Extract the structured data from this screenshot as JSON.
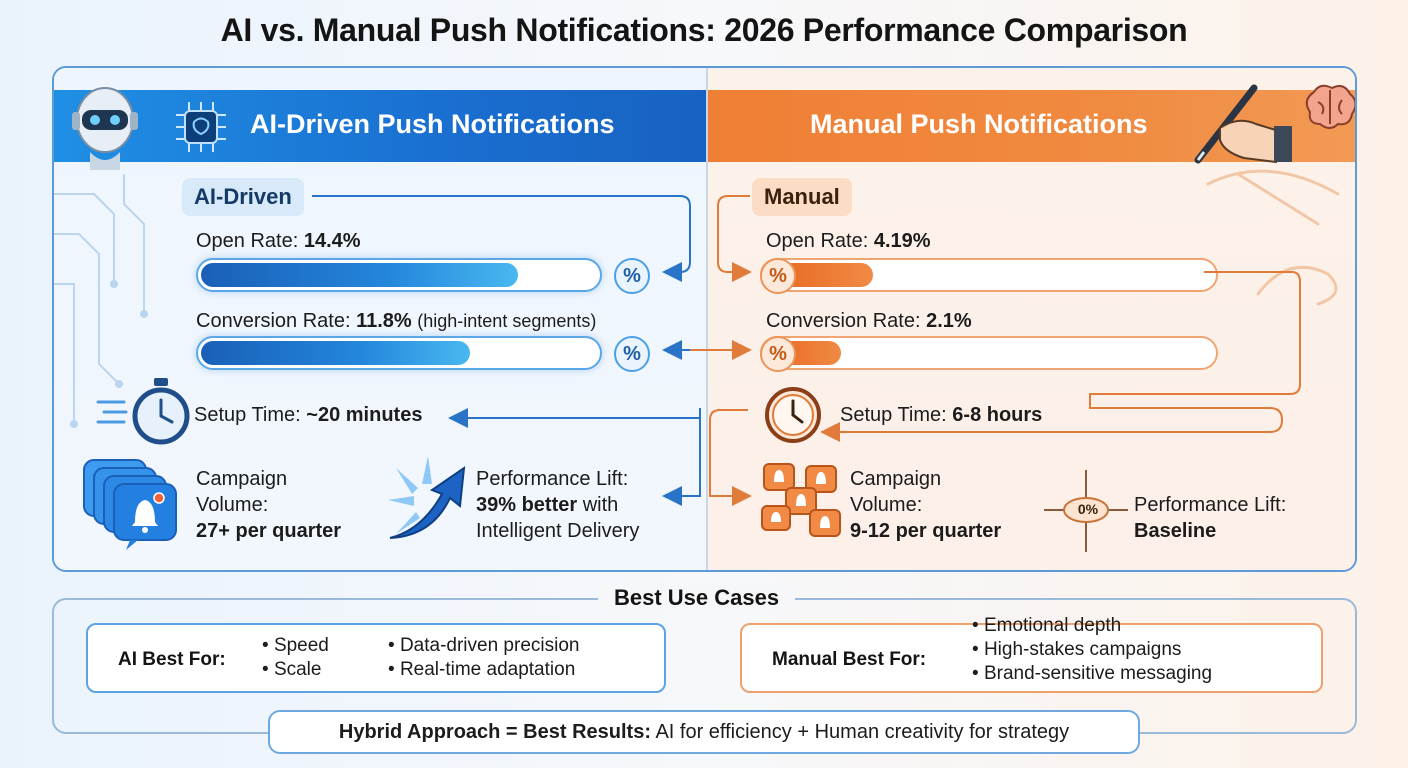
{
  "title": "AI vs. Manual Push Notifications: 2026 Performance Comparison",
  "ai": {
    "header": "AI-Driven Push Notifications",
    "tag": "AI-Driven",
    "open_rate_label": "Open Rate:",
    "open_rate_value": "14.4%",
    "open_rate_fill": 0.8,
    "conversion_label": "Conversion Rate:",
    "conversion_value": "11.8%",
    "conversion_note": "(high-intent segments)",
    "conversion_fill": 0.68,
    "setup_label": "Setup Time:",
    "setup_value": "~20 minutes",
    "volume_label_1": "Campaign",
    "volume_label_2": "Volume:",
    "volume_value": "27+ per quarter",
    "lift_label": "Performance Lift:",
    "lift_value": "39% better",
    "lift_with": "with",
    "lift_note": "Intelligent Delivery",
    "pct_symbol": "%"
  },
  "manual": {
    "header": "Manual Push Notifications",
    "tag": "Manual",
    "open_rate_label": "Open Rate:",
    "open_rate_value": "4.19%",
    "open_rate_fill": 0.24,
    "conversion_label": "Conversion Rate:",
    "conversion_value": "2.1%",
    "conversion_fill": 0.17,
    "setup_label": "Setup Time:",
    "setup_value": "6-8 hours",
    "volume_label_1": "Campaign",
    "volume_label_2": "Volume:",
    "volume_value": "9-12 per quarter",
    "lift_label": "Performance Lift:",
    "lift_value": "Baseline",
    "zero_badge": "0%",
    "pct_symbol": "%"
  },
  "use_cases": {
    "title": "Best Use Cases",
    "ai_label": "AI Best For:",
    "ai_items": [
      "Speed",
      "Scale",
      "Data-driven precision",
      "Real-time adaptation"
    ],
    "manual_label": "Manual Best For:",
    "manual_items": [
      "Emotional depth",
      "High-stakes campaigns",
      "Brand-sensitive messaging"
    ]
  },
  "hybrid": {
    "bold": "Hybrid Approach = Best Results:",
    "text": "AI for efficiency + Human creativity for strategy"
  },
  "colors": {
    "ai_primary": "#1a6fd0",
    "manual_primary": "#ef7f35"
  }
}
